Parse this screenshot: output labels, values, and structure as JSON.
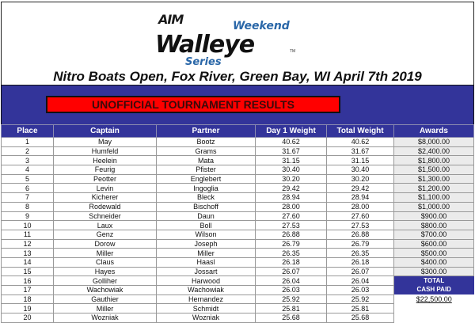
{
  "logo": {
    "brand": "AIM",
    "line1": "Weekend",
    "line2": "Walleye",
    "line3": "Series",
    "tm": "TM"
  },
  "event_title": "Nitro Boats Open, Fox River, Green Bay, WI April 7th 2019",
  "results_banner": "UNOFFICIAL TOURNAMENT RESULTS",
  "colors": {
    "band": "#33349a",
    "banner": "#ff0000",
    "award_cell": "#ebebeb",
    "logo_blue": "#2a67a8"
  },
  "table": {
    "headers": [
      "Place",
      "Captain",
      "Partner",
      "Day 1 Weight",
      "Total Weight",
      "Awards"
    ],
    "rows": [
      [
        "1",
        "May",
        "Bootz",
        "40.62",
        "40.62",
        "$8,000.00"
      ],
      [
        "2",
        "Humfeld",
        "Grams",
        "31.67",
        "31.67",
        "$2,400.00"
      ],
      [
        "3",
        "Heelein",
        "Mata",
        "31.15",
        "31.15",
        "$1,800.00"
      ],
      [
        "4",
        "Feurig",
        "Pfister",
        "30.40",
        "30.40",
        "$1,500.00"
      ],
      [
        "5",
        "Peotter",
        "Englebert",
        "30.20",
        "30.20",
        "$1,300.00"
      ],
      [
        "6",
        "Levin",
        "Ingoglia",
        "29.42",
        "29.42",
        "$1,200.00"
      ],
      [
        "7",
        "Kicherer",
        "Bleck",
        "28.94",
        "28.94",
        "$1,100.00"
      ],
      [
        "8",
        "Rodewald",
        "Bischoff",
        "28.00",
        "28.00",
        "$1,000.00"
      ],
      [
        "9",
        "Schneider",
        "Daun",
        "27.60",
        "27.60",
        "$900.00"
      ],
      [
        "10",
        "Laux",
        "Boll",
        "27.53",
        "27.53",
        "$800.00"
      ],
      [
        "11",
        "Genz",
        "Wilson",
        "26.88",
        "26.88",
        "$700.00"
      ],
      [
        "12",
        "Dorow",
        "Joseph",
        "26.79",
        "26.79",
        "$600.00"
      ],
      [
        "13",
        "Miller",
        "Miller",
        "26.35",
        "26.35",
        "$500.00"
      ],
      [
        "14",
        "Claus",
        "Haasl",
        "26.18",
        "26.18",
        "$400.00"
      ],
      [
        "15",
        "Hayes",
        "Jossart",
        "26.07",
        "26.07",
        "$300.00"
      ],
      [
        "16",
        "Golliher",
        "Harwood",
        "26.04",
        "26.04",
        ""
      ],
      [
        "17",
        "Wachowiak",
        "Wachowiak",
        "26.03",
        "26.03",
        ""
      ],
      [
        "18",
        "Gauthier",
        "Hernandez",
        "25.92",
        "25.92",
        ""
      ],
      [
        "19",
        "Miller",
        "Schmidt",
        "25.81",
        "25.81",
        ""
      ],
      [
        "20",
        "Wozniak",
        "Wozniak",
        "25.68",
        "25.68",
        ""
      ]
    ],
    "total_label_1": "TOTAL",
    "total_label_2": "CASH PAID",
    "total_value": "$22,500.00"
  }
}
